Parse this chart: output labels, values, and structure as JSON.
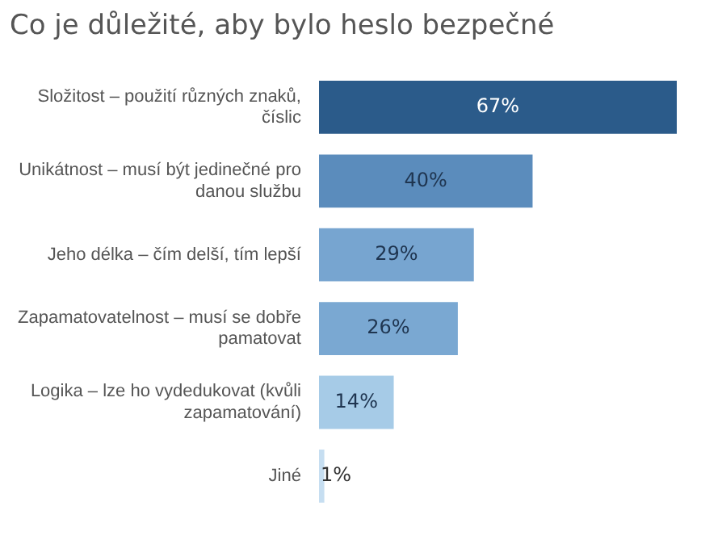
{
  "chart_data": {
    "type": "bar",
    "orientation": "horizontal",
    "title": "Co je důležité, aby bylo heslo bezpečné",
    "categories": [
      "Složitost – použití různých znaků, číslic",
      "Unikátnost – musí být jedinečné pro danou službu",
      "Jeho délka – čím delší, tím lepší",
      "Zapamatovatelnost – musí se dobře pamatovat",
      "Logika – lze ho vydedukovat (kvůli zapamatování)",
      "Jiné"
    ],
    "values": [
      67,
      40,
      29,
      26,
      14,
      1
    ],
    "value_labels": [
      "67%",
      "40%",
      "29%",
      "26%",
      "14%",
      "1%"
    ],
    "colors": [
      "#2b5b8a",
      "#5b8cbc",
      "#77a5d0",
      "#7aa8d2",
      "#a6cbe7",
      "#c6def1"
    ],
    "legend": false
  }
}
